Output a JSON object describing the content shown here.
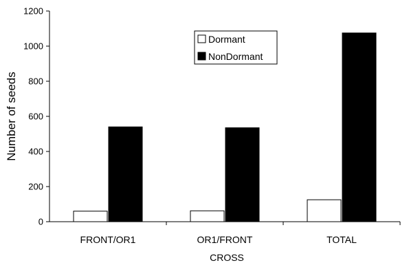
{
  "chart_data": {
    "type": "bar",
    "categories": [
      "FRONT/OR1",
      "OR1/FRONT",
      "TOTAL"
    ],
    "series": [
      {
        "name": "Dormant",
        "values": [
          60,
          62,
          125
        ],
        "color": "#ffffff"
      },
      {
        "name": "NonDormant",
        "values": [
          540,
          535,
          1075
        ],
        "color": "#000000"
      }
    ],
    "xlabel": "CROSS",
    "ylabel": "Number of seeds",
    "ylim": [
      0,
      1200
    ],
    "yticks": [
      0,
      200,
      400,
      600,
      800,
      1000,
      1200
    ],
    "grid": false,
    "legend_position": "top-center"
  }
}
